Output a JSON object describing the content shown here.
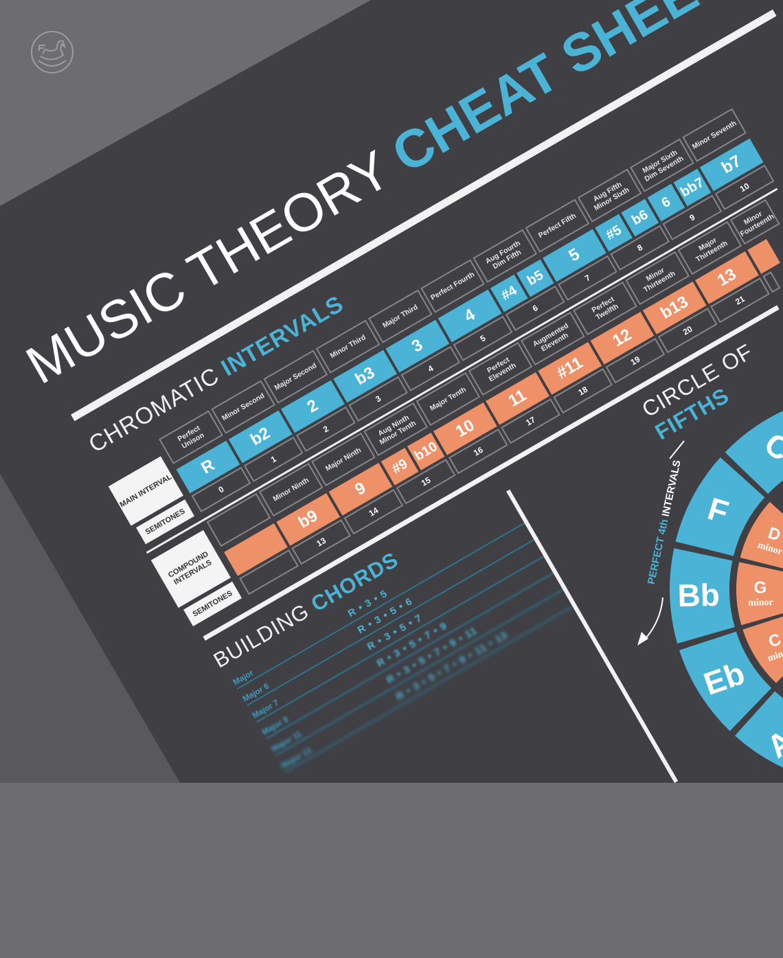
{
  "colors": {
    "accent_blue": "#4ab3d6",
    "accent_orange": "#ef9168",
    "poster_bg": "#3f3f44"
  },
  "brand": {
    "logo_icon": "rocking-horse-icon"
  },
  "title": {
    "main": "MUSIC THEORY",
    "accent": "CHEAT SHEET"
  },
  "intervals": {
    "heading": "CHROMATIC",
    "heading_accent": "INTERVALS",
    "row_headers": {
      "main": "MAIN INTERVAL",
      "semitones": "SEMITONES",
      "compound": "COMPOUND INTERVALS",
      "compound_semitones": "SEMITONES"
    },
    "main": [
      {
        "label": "Perfect Unison",
        "cells": [
          "R"
        ],
        "semitones": "0"
      },
      {
        "label": "Minor Second",
        "cells": [
          "b2"
        ],
        "semitones": "1"
      },
      {
        "label": "Major Second",
        "cells": [
          "2"
        ],
        "semitones": "2"
      },
      {
        "label": "Minor Third",
        "cells": [
          "b3"
        ],
        "semitones": "3"
      },
      {
        "label": "Major Third",
        "cells": [
          "3"
        ],
        "semitones": "4"
      },
      {
        "label": "Perfect Fourth",
        "cells": [
          "4"
        ],
        "semitones": "5"
      },
      {
        "label": "Aug Fourth Dim Fifth",
        "cells": [
          "#4",
          "b5"
        ],
        "semitones": "6"
      },
      {
        "label": "Perfect Fifth",
        "cells": [
          "5"
        ],
        "semitones": "7"
      },
      {
        "label": "Aug Fifth Minor Sixth",
        "cells": [
          "#5",
          "b6"
        ],
        "semitones": "8"
      },
      {
        "label": "Major Sixth Dim Seventh",
        "cells": [
          "6",
          "bb7"
        ],
        "semitones": "9"
      },
      {
        "label": "Minor Seventh",
        "cells": [
          "b7"
        ],
        "semitones": "10"
      }
    ],
    "compound": [
      {
        "label": "",
        "cells": [
          ""
        ],
        "semitones": ""
      },
      {
        "label": "Minor Ninth",
        "cells": [
          "b9"
        ],
        "semitones": "13"
      },
      {
        "label": "Major Ninth",
        "cells": [
          "9"
        ],
        "semitones": "14"
      },
      {
        "label": "Aug Ninth Minor Tenth",
        "cells": [
          "#9",
          "b10"
        ],
        "semitones": "15"
      },
      {
        "label": "Major Tenth",
        "cells": [
          "10"
        ],
        "semitones": "16"
      },
      {
        "label": "Perfect Eleventh",
        "cells": [
          "11"
        ],
        "semitones": "17"
      },
      {
        "label": "Augmented Eleventh",
        "cells": [
          "#11"
        ],
        "semitones": "18"
      },
      {
        "label": "Perfect Twelfth",
        "cells": [
          "12"
        ],
        "semitones": "19"
      },
      {
        "label": "Minor Thirteenth",
        "cells": [
          "b13"
        ],
        "semitones": "20"
      },
      {
        "label": "Major Thirteenth",
        "cells": [
          "13"
        ],
        "semitones": "21"
      },
      {
        "label": "Minor Fourteenth",
        "cells": [
          ""
        ],
        "semitones": ""
      }
    ]
  },
  "chords": {
    "heading": "BUILDING",
    "heading_accent": "CHORDS",
    "rows": [
      {
        "name": "Major",
        "formula": "R • 3 • 5"
      },
      {
        "name": "Major 6",
        "formula": "R • 3 • 5 • 6"
      },
      {
        "name": "Major 7",
        "formula": "R • 3 • 5 • 7"
      },
      {
        "name": "Major 9",
        "formula": "R • 3 • 5 • 7 • 9"
      },
      {
        "name": "Major 11",
        "formula": "R • 3 • 5 • 7 • 9 • 11"
      },
      {
        "name": "Major 13",
        "formula": "R • 3 • 5 • 7 • 9 • 11 • 13"
      }
    ]
  },
  "circle": {
    "heading": "CIRCLE OF",
    "heading_accent": "FIFTHS",
    "direction_label": {
      "accent": "PERFECT 4th",
      "text": "INTERVALS"
    },
    "major_keys": [
      {
        "key": "C",
        "angle": 238
      },
      {
        "key": "F",
        "angle": 208
      },
      {
        "key": "Bb",
        "angle": 178
      },
      {
        "key": "Eb",
        "angle": 148
      },
      {
        "key": "Ab",
        "angle": 118
      }
    ],
    "minor_keys": [
      {
        "key": "D",
        "quality": "minor",
        "angle": 208
      },
      {
        "key": "G",
        "quality": "minor",
        "angle": 178
      },
      {
        "key": "C",
        "quality": "minor",
        "angle": 148
      }
    ]
  }
}
